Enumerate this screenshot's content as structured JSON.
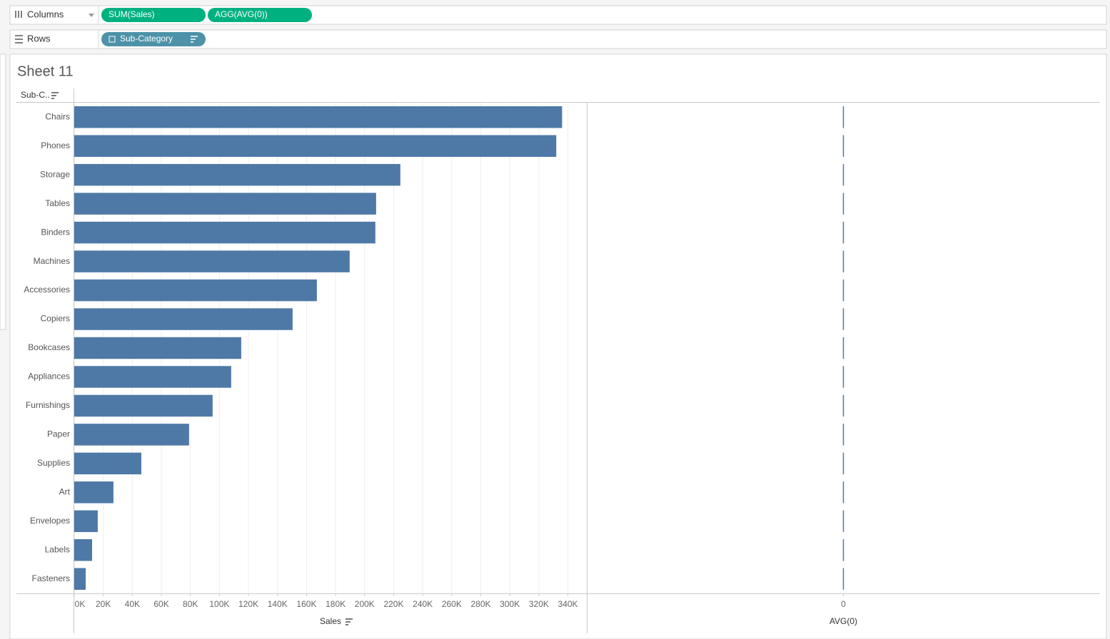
{
  "shelves": {
    "columns": {
      "label": "Columns",
      "pills": [
        "SUM(Sales)",
        "AGG(AVG(0))"
      ]
    },
    "rows": {
      "label": "Rows",
      "pills": [
        "Sub-Category"
      ]
    }
  },
  "chart_data": [
    {
      "type": "bar",
      "title": "Sheet 11",
      "row_header": "Sub-C..",
      "categories": [
        "Chairs",
        "Phones",
        "Storage",
        "Tables",
        "Binders",
        "Machines",
        "Accessories",
        "Copiers",
        "Bookcases",
        "Appliances",
        "Furnishings",
        "Paper",
        "Supplies",
        "Art",
        "Envelopes",
        "Labels",
        "Fasteners"
      ],
      "xlabel": "Sales",
      "values": [
        336000,
        332000,
        224600,
        207900,
        207400,
        189700,
        167100,
        150400,
        115000,
        108100,
        95300,
        79100,
        46200,
        27000,
        16200,
        12300,
        7900
      ],
      "color": "#4e79a7",
      "xlim": [
        0,
        353000
      ],
      "xticks": [
        {
          "value": 0,
          "label": "0K"
        },
        {
          "value": 20000,
          "label": "20K"
        },
        {
          "value": 40000,
          "label": "40K"
        },
        {
          "value": 60000,
          "label": "60K"
        },
        {
          "value": 80000,
          "label": "80K"
        },
        {
          "value": 100000,
          "label": "100K"
        },
        {
          "value": 120000,
          "label": "120K"
        },
        {
          "value": 140000,
          "label": "140K"
        },
        {
          "value": 160000,
          "label": "160K"
        },
        {
          "value": 180000,
          "label": "180K"
        },
        {
          "value": 200000,
          "label": "200K"
        },
        {
          "value": 220000,
          "label": "220K"
        },
        {
          "value": 240000,
          "label": "240K"
        },
        {
          "value": 260000,
          "label": "260K"
        },
        {
          "value": 280000,
          "label": "280K"
        },
        {
          "value": 300000,
          "label": "300K"
        },
        {
          "value": 320000,
          "label": "320K"
        },
        {
          "value": 340000,
          "label": "340K"
        }
      ],
      "grid": true
    },
    {
      "type": "bar",
      "xlabel": "AVG(0)",
      "values": [
        0,
        0,
        0,
        0,
        0,
        0,
        0,
        0,
        0,
        0,
        0,
        0,
        0,
        0,
        0,
        0,
        0
      ],
      "color": "#4e79a7",
      "xlim": [
        -1,
        1
      ],
      "xticks": [
        0
      ],
      "grid": false
    }
  ]
}
